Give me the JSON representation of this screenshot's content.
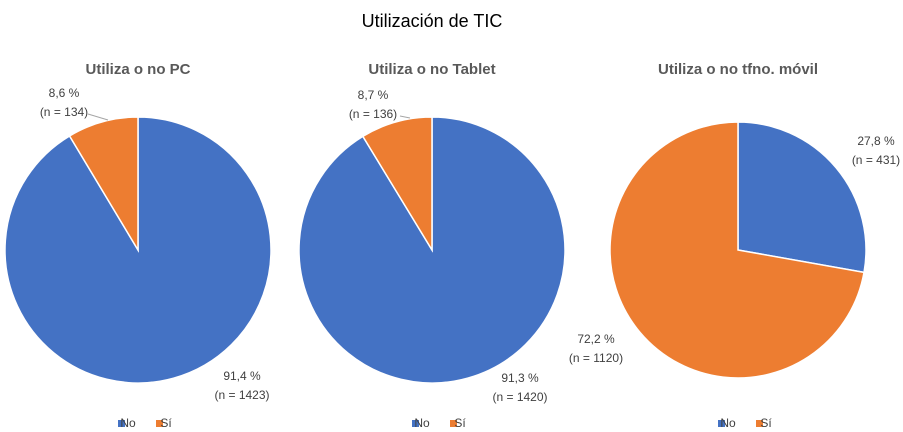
{
  "title": "Utilización de TIC",
  "chart_data": [
    {
      "type": "pie",
      "title": "Utiliza o no PC",
      "categories": [
        "No",
        "Sí"
      ],
      "colors": [
        "#4472c4",
        "#ed7d31"
      ],
      "values": [
        91.4,
        8.6
      ],
      "value_labels": [
        "91,4 %",
        "8,6 %"
      ],
      "counts": [
        1423,
        134
      ],
      "count_labels": [
        "(n = 1423)",
        "(n = 134)"
      ]
    },
    {
      "type": "pie",
      "title": "Utiliza o no Tablet",
      "categories": [
        "No",
        "Sí"
      ],
      "colors": [
        "#4472c4",
        "#ed7d31"
      ],
      "values": [
        91.3,
        8.7
      ],
      "value_labels": [
        "91,3 %",
        "8,7 %"
      ],
      "counts": [
        1420,
        136
      ],
      "count_labels": [
        "(n = 1420)",
        "(n = 136)"
      ]
    },
    {
      "type": "pie",
      "title": "Utiliza o no tfno. móvil",
      "categories": [
        "No",
        "Sí"
      ],
      "colors": [
        "#4472c4",
        "#ed7d31"
      ],
      "values": [
        27.8,
        72.2
      ],
      "value_labels": [
        "27,8 %",
        "72,2 %"
      ],
      "counts": [
        431,
        1120
      ],
      "count_labels": [
        "(n = 431)",
        "(n = 1120)"
      ]
    }
  ]
}
